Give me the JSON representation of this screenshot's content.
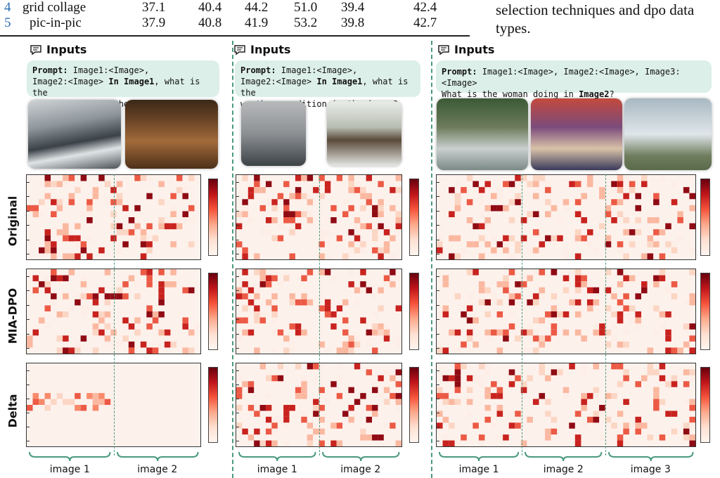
{
  "table": {
    "rows": [
      {
        "num": "4",
        "name": "grid collage",
        "vals": [
          "37.1",
          "40.4",
          "44.2",
          "51.0",
          "39.4",
          "42.4"
        ]
      },
      {
        "num": "5",
        "name": "pic-in-pic",
        "vals": [
          "37.9",
          "40.8",
          "41.9",
          "53.2",
          "39.8",
          "42.7"
        ]
      }
    ]
  },
  "side_text": {
    "line1": "selection techniques and dpo data",
    "line2": "types."
  },
  "row_labels": [
    "Original",
    "MIA-DPO",
    "Delta"
  ],
  "panels": [
    {
      "inputs_title": "Inputs",
      "prompt_parts": [
        {
          "t": "Prompt:",
          "b": true
        },
        {
          "t": " Image1:<Image>,\nImage2:<Image> ",
          "b": false
        },
        {
          "t": "In Image1",
          "b": true
        },
        {
          "t": ", what is the\nperson doing in the image ?",
          "b": false
        }
      ],
      "image_labels": [
        "image 1",
        "image 2"
      ]
    },
    {
      "inputs_title": "Inputs",
      "prompt_parts": [
        {
          "t": "Prompt:",
          "b": true
        },
        {
          "t": " Image1:<Image>,\nImage2:<Image> ",
          "b": false
        },
        {
          "t": "In Image1",
          "b": true
        },
        {
          "t": ", what is the\nweather condition in the image?",
          "b": false
        }
      ],
      "image_labels": [
        "image 1",
        "image 2"
      ]
    },
    {
      "inputs_title": "Inputs",
      "prompt_parts": [
        {
          "t": "Prompt:",
          "b": true
        },
        {
          "t": " Image1:<Image>, Image2:<Image>, Image3:<Image>\nWhat is the woman doing in ",
          "b": false
        },
        {
          "t": "Image2",
          "b": true
        },
        {
          "t": "?",
          "b": false
        }
      ],
      "image_labels": [
        "image 1",
        "image 2",
        "image 3"
      ]
    }
  ],
  "colors": {
    "accent": "#4a9a7c",
    "prompt_bg": "#dcefe9",
    "heat_low": "#fdf1ec",
    "heat_high": "#67000d"
  }
}
